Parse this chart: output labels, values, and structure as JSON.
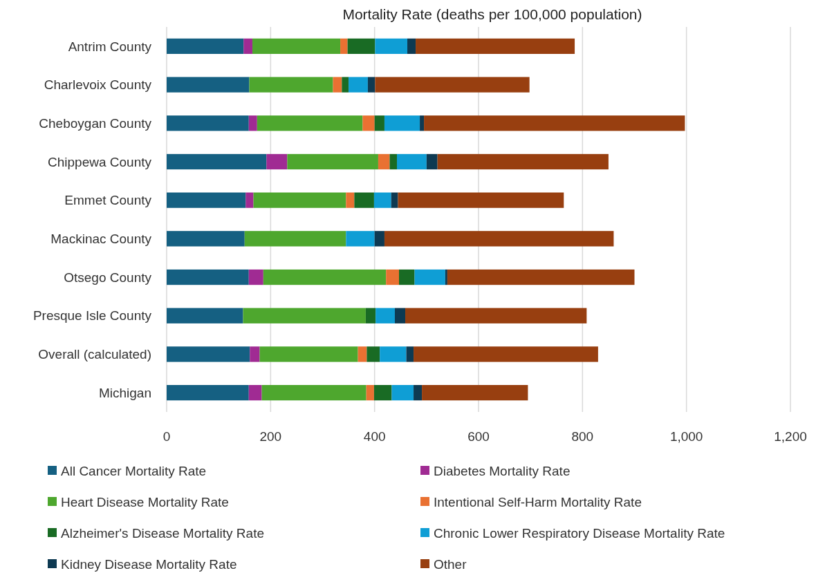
{
  "chart_data": {
    "type": "bar",
    "orientation": "horizontal",
    "stacked": true,
    "title": "Mortality Rate (deaths per 100,000 population)",
    "categories": [
      "Antrim County",
      "Charlevoix County",
      "Cheboygan County",
      "Chippewa County",
      "Emmet County",
      "Mackinac County",
      "Otsego County",
      "Presque Isle County",
      "Overall (calculated)",
      "Michigan"
    ],
    "series": [
      {
        "name": "All Cancer Mortality Rate",
        "color": "#156082",
        "values": [
          148,
          159,
          158,
          192,
          152,
          150,
          158,
          147,
          160,
          158
        ]
      },
      {
        "name": "Diabetes Mortality Rate",
        "color": "#a02b93",
        "values": [
          17,
          null,
          16,
          40,
          15,
          null,
          28,
          null,
          19,
          25
        ]
      },
      {
        "name": "Heart Disease Mortality Rate",
        "color": "#4ea72e",
        "values": [
          169,
          161,
          203,
          175,
          178,
          195,
          236,
          236,
          189,
          201
        ]
      },
      {
        "name": "Intentional Self-Harm Mortality Rate",
        "color": "#e97132",
        "values": [
          14,
          17,
          23,
          22,
          16,
          null,
          25,
          null,
          17,
          15
        ]
      },
      {
        "name": "Alzheimer's Disease Mortality Rate",
        "color": "#196b24",
        "values": [
          53,
          13,
          19,
          14,
          38,
          null,
          30,
          19,
          25,
          34
        ]
      },
      {
        "name": "Chronic Lower Respiratory Disease Mortality Rate",
        "color": "#0f9ed5",
        "values": [
          62,
          37,
          68,
          57,
          33,
          55,
          59,
          37,
          51,
          42
        ]
      },
      {
        "name": "Kidney Disease Mortality Rate",
        "color": "#0e3a52",
        "values": [
          16,
          14,
          8,
          21,
          13,
          19,
          4,
          20,
          14,
          16
        ]
      },
      {
        "name": "Other",
        "color": "#983f10",
        "values": [
          306,
          297,
          502,
          329,
          319,
          441,
          360,
          349,
          355,
          204
        ]
      }
    ],
    "xlim": [
      0,
      1200
    ],
    "xticks": [
      0,
      200,
      400,
      600,
      800,
      {
        "value": 1000,
        "label": "1,000"
      },
      {
        "value": 1200,
        "label": "1,200"
      }
    ],
    "grid": "x",
    "legend": "bottom"
  }
}
